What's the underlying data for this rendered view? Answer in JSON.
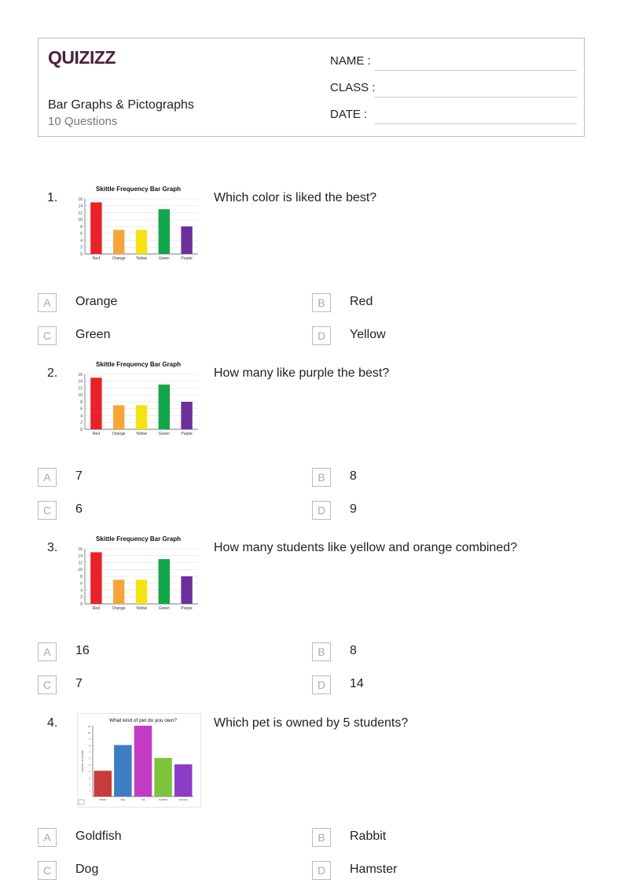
{
  "header": {
    "logo_text": "QUIZIZZ",
    "title": "Bar Graphs & Pictographs",
    "subtitle": "10 Questions",
    "name_label": "NAME :",
    "class_label": "CLASS :",
    "date_label": "DATE  :"
  },
  "questions": [
    {
      "number": "1.",
      "text": "Which color is liked the best?",
      "options": [
        {
          "letter": "A",
          "text": "Orange"
        },
        {
          "letter": "B",
          "text": "Red"
        },
        {
          "letter": "C",
          "text": "Green"
        },
        {
          "letter": "D",
          "text": "Yellow"
        }
      ]
    },
    {
      "number": "2.",
      "text": "How many like purple the best?",
      "options": [
        {
          "letter": "A",
          "text": "7"
        },
        {
          "letter": "B",
          "text": "8"
        },
        {
          "letter": "C",
          "text": "6"
        },
        {
          "letter": "D",
          "text": "9"
        }
      ]
    },
    {
      "number": "3.",
      "text": "How many students like yellow and orange combined?",
      "options": [
        {
          "letter": "A",
          "text": "16"
        },
        {
          "letter": "B",
          "text": "8"
        },
        {
          "letter": "C",
          "text": "7"
        },
        {
          "letter": "D",
          "text": "14"
        }
      ]
    },
    {
      "number": "4.",
      "text": "Which pet is owned by 5 students?",
      "options": [
        {
          "letter": "A",
          "text": "Goldfish"
        },
        {
          "letter": "B",
          "text": "Rabbit"
        },
        {
          "letter": "C",
          "text": "Dog"
        },
        {
          "letter": "D",
          "text": "Hamster"
        }
      ]
    }
  ],
  "chart_data": [
    {
      "type": "bar",
      "title": "Skittle Frequency Bar Graph",
      "categories": [
        "Red",
        "Orange",
        "Yellow",
        "Green",
        "Purple"
      ],
      "values": [
        15,
        7,
        7,
        13,
        8
      ],
      "colors": [
        "#e8232a",
        "#f7a43b",
        "#f5e212",
        "#12a64a",
        "#6d2f9c"
      ],
      "yticks": [
        "0",
        "2",
        "4",
        "6",
        "8",
        "10",
        "12",
        "14",
        "16"
      ],
      "ylim": [
        0,
        16
      ]
    },
    {
      "type": "bar",
      "title": "Skittle Frequency Bar Graph",
      "categories": [
        "Red",
        "Orange",
        "Yellow",
        "Green",
        "Purple"
      ],
      "values": [
        15,
        7,
        7,
        13,
        8
      ],
      "colors": [
        "#e8232a",
        "#f7a43b",
        "#f5e212",
        "#12a64a",
        "#6d2f9c"
      ],
      "yticks": [
        "0",
        "2",
        "4",
        "6",
        "8",
        "10",
        "12",
        "14",
        "16"
      ],
      "ylim": [
        0,
        16
      ]
    },
    {
      "type": "bar",
      "title": "Skittle Frequency Bar Graph",
      "categories": [
        "Red",
        "Orange",
        "Yellow",
        "Green",
        "Purple"
      ],
      "values": [
        15,
        7,
        7,
        13,
        8
      ],
      "colors": [
        "#e8232a",
        "#f7a43b",
        "#f5e212",
        "#12a64a",
        "#6d2f9c"
      ],
      "yticks": [
        "0",
        "2",
        "4",
        "6",
        "8",
        "10",
        "12",
        "14",
        "16"
      ],
      "ylim": [
        0,
        16
      ]
    },
    {
      "type": "bar",
      "title": "What kind of pet do you own?",
      "ylabel": "number of people",
      "categories": [
        "Rabbit",
        "Dog",
        "Cat",
        "Goldfish",
        "Hamster"
      ],
      "values": [
        4,
        8,
        11,
        6,
        5
      ],
      "colors": [
        "#c83c3c",
        "#3c7dc4",
        "#c43cc4",
        "#7dc43c",
        "#8c3cc8"
      ],
      "yticks": [
        "1",
        "2",
        "3",
        "4",
        "5",
        "6",
        "7",
        "8",
        "9",
        "10",
        "11"
      ],
      "ylim": [
        0,
        11
      ]
    }
  ]
}
